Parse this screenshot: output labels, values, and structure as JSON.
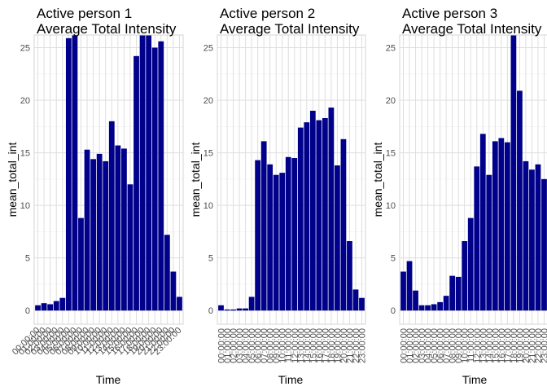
{
  "chart_data": [
    {
      "type": "bar",
      "title": "Active person 1",
      "subtitle": "Average Total Intensity",
      "xlabel": "Time",
      "ylabel": "mean_total_int",
      "ylim": [
        -1.3,
        26.2
      ],
      "yticks": [
        0,
        5,
        10,
        15,
        20,
        25
      ],
      "tick_angle": -45,
      "bar_color": "#00008b",
      "categories": [
        "00:00:00",
        "01:00:00",
        "02:00:00",
        "03:00:00",
        "04:00:00",
        "05:00:00",
        "06:00:00",
        "07:00:00",
        "08:00:00",
        "09:00:00",
        "10:00:00",
        "11:00:00",
        "12:00:00",
        "13:00:00",
        "14:00:00",
        "15:00:00",
        "16:00:00",
        "17:00:00",
        "18:00:00",
        "19:00:00",
        "20:00:00",
        "21:00:00",
        "22:00:00",
        "23:00:00"
      ],
      "values": [
        0.5,
        0.7,
        0.6,
        0.9,
        1.2,
        25.9,
        26.2,
        8.8,
        15.3,
        14.4,
        14.9,
        14.2,
        18.0,
        15.7,
        15.4,
        12.0,
        24.2,
        26.3,
        26.3,
        25.0,
        25.6,
        7.2,
        3.7,
        1.3
      ]
    },
    {
      "type": "bar",
      "title": "Active person 2",
      "subtitle": "Average Total Intensity",
      "xlabel": "Time",
      "ylabel": "mean_total_int",
      "ylim": [
        -1.3,
        26.2
      ],
      "yticks": [
        0,
        5,
        10,
        15,
        20,
        25
      ],
      "tick_angle": -90,
      "bar_color": "#00008b",
      "categories": [
        "00:00:00",
        "01:00:00",
        "02:00:00",
        "03:00:00",
        "04:00:00",
        "05:00:00",
        "06:00:00",
        "07:00:00",
        "08:00:00",
        "09:00:00",
        "10:00:00",
        "11:00:00",
        "12:00:00",
        "13:00:00",
        "14:00:00",
        "15:00:00",
        "16:00:00",
        "17:00:00",
        "18:00:00",
        "19:00:00",
        "20:00:00",
        "21:00:00",
        "22:00:00",
        "23:00:00"
      ],
      "values": [
        0.5,
        0.1,
        0.1,
        0.2,
        0.2,
        1.3,
        14.3,
        16.1,
        13.9,
        12.9,
        13.1,
        14.6,
        14.5,
        17.4,
        17.9,
        19.0,
        18.1,
        18.3,
        19.3,
        13.8,
        16.3,
        6.6,
        2.0,
        1.2
      ]
    },
    {
      "type": "bar",
      "title": "Active person 3",
      "subtitle": "Average Total Intensity",
      "xlabel": "Time",
      "ylabel": "mean_total_int",
      "ylim": [
        -1.3,
        26.2
      ],
      "yticks": [
        0,
        5,
        10,
        15,
        20,
        25
      ],
      "tick_angle": -90,
      "bar_color": "#00008b",
      "categories": [
        "00:00:00",
        "01:00:00",
        "02:00:00",
        "03:00:00",
        "04:00:00",
        "05:00:00",
        "06:00:00",
        "07:00:00",
        "08:00:00",
        "09:00:00",
        "10:00:00",
        "11:00:00",
        "12:00:00",
        "13:00:00",
        "14:00:00",
        "15:00:00",
        "16:00:00",
        "17:00:00",
        "18:00:00",
        "19:00:00",
        "20:00:00",
        "21:00:00",
        "22:00:00",
        "23:00:00"
      ],
      "values": [
        3.7,
        4.7,
        1.9,
        0.5,
        0.5,
        0.6,
        0.8,
        1.4,
        3.3,
        3.2,
        6.6,
        8.8,
        13.7,
        16.8,
        12.9,
        16.1,
        16.4,
        16.0,
        26.3,
        20.9,
        14.2,
        13.4,
        13.9,
        12.5
      ]
    }
  ]
}
